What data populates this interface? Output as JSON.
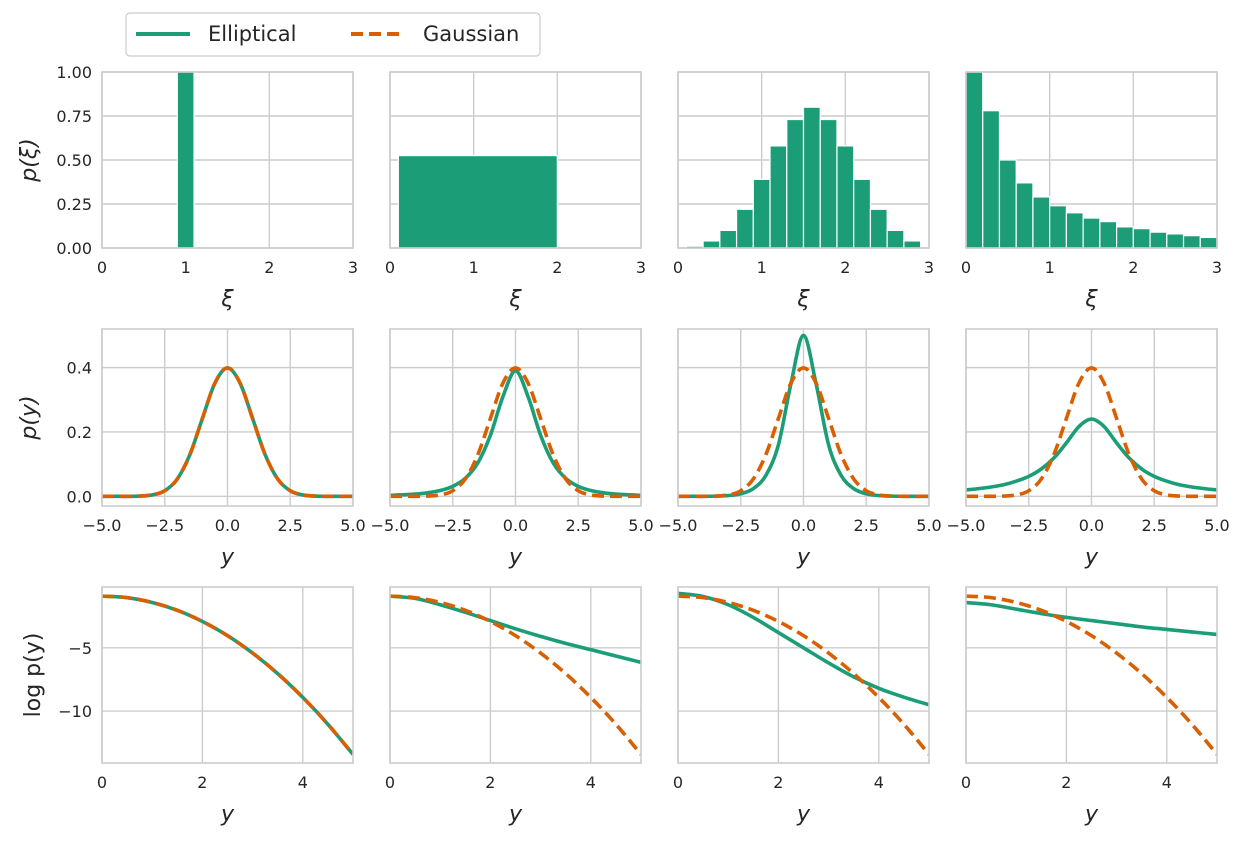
{
  "legend": {
    "position": "top-left",
    "entries": [
      {
        "label": "Elliptical",
        "color": "#1b9e77",
        "style": "solid"
      },
      {
        "label": "Gaussian",
        "color": "#d95f02",
        "style": "dashed"
      }
    ]
  },
  "colors": {
    "elliptical": "#1b9e77",
    "gaussian": "#d95f02",
    "grid": "#cccccc",
    "spine": "#cccccc"
  },
  "chart_data": [
    {
      "type": "bar",
      "row": "p(xi)",
      "column": 1,
      "xlabel": "ξ",
      "ylabel": "p(ξ)",
      "xlim": [
        0,
        3
      ],
      "ylim": [
        0,
        1
      ],
      "xticks": [
        "0",
        "1",
        "2",
        "3"
      ],
      "yticks": [
        "0.00",
        "0.25",
        "0.50",
        "0.75",
        "1.00"
      ],
      "grid": true,
      "bars": [
        {
          "x0": 0.9,
          "x1": 1.1,
          "value": 1.0
        }
      ]
    },
    {
      "type": "bar",
      "row": "p(xi)",
      "column": 2,
      "xlabel": "ξ",
      "ylabel": "",
      "xlim": [
        0,
        3
      ],
      "ylim": [
        0,
        1
      ],
      "xticks": [
        "0",
        "1",
        "2",
        "3"
      ],
      "yticks": [],
      "grid": true,
      "bars": [
        {
          "x0": 0.1,
          "x1": 2.0,
          "value": 0.525
        }
      ]
    },
    {
      "type": "bar",
      "row": "p(xi)",
      "column": 3,
      "xlabel": "ξ",
      "ylabel": "",
      "xlim": [
        0,
        3
      ],
      "ylim": [
        0,
        1
      ],
      "xticks": [
        "0",
        "1",
        "2",
        "3"
      ],
      "yticks": [],
      "grid": true,
      "bars": [
        {
          "x0": 0.1,
          "x1": 0.3,
          "value": 0.01
        },
        {
          "x0": 0.3,
          "x1": 0.5,
          "value": 0.04
        },
        {
          "x0": 0.5,
          "x1": 0.7,
          "value": 0.1
        },
        {
          "x0": 0.7,
          "x1": 0.9,
          "value": 0.22
        },
        {
          "x0": 0.9,
          "x1": 1.1,
          "value": 0.39
        },
        {
          "x0": 1.1,
          "x1": 1.3,
          "value": 0.58
        },
        {
          "x0": 1.3,
          "x1": 1.5,
          "value": 0.73
        },
        {
          "x0": 1.5,
          "x1": 1.7,
          "value": 0.8
        },
        {
          "x0": 1.7,
          "x1": 1.9,
          "value": 0.73
        },
        {
          "x0": 1.9,
          "x1": 2.1,
          "value": 0.58
        },
        {
          "x0": 2.1,
          "x1": 2.3,
          "value": 0.39
        },
        {
          "x0": 2.3,
          "x1": 2.5,
          "value": 0.22
        },
        {
          "x0": 2.5,
          "x1": 2.7,
          "value": 0.1
        },
        {
          "x0": 2.7,
          "x1": 2.9,
          "value": 0.04
        }
      ]
    },
    {
      "type": "bar",
      "row": "p(xi)",
      "column": 4,
      "xlabel": "ξ",
      "ylabel": "",
      "xlim": [
        0,
        3
      ],
      "ylim": [
        0,
        1
      ],
      "xticks": [
        "0",
        "1",
        "2",
        "3"
      ],
      "yticks": [],
      "grid": true,
      "bars": [
        {
          "x0": 0.0,
          "x1": 0.2,
          "value": 1.0
        },
        {
          "x0": 0.2,
          "x1": 0.4,
          "value": 0.78
        },
        {
          "x0": 0.4,
          "x1": 0.6,
          "value": 0.5
        },
        {
          "x0": 0.6,
          "x1": 0.8,
          "value": 0.37
        },
        {
          "x0": 0.8,
          "x1": 1.0,
          "value": 0.29
        },
        {
          "x0": 1.0,
          "x1": 1.2,
          "value": 0.24
        },
        {
          "x0": 1.2,
          "x1": 1.4,
          "value": 0.2
        },
        {
          "x0": 1.4,
          "x1": 1.6,
          "value": 0.17
        },
        {
          "x0": 1.6,
          "x1": 1.8,
          "value": 0.15
        },
        {
          "x0": 1.8,
          "x1": 2.0,
          "value": 0.12
        },
        {
          "x0": 2.0,
          "x1": 2.2,
          "value": 0.11
        },
        {
          "x0": 2.2,
          "x1": 2.4,
          "value": 0.09
        },
        {
          "x0": 2.4,
          "x1": 2.6,
          "value": 0.08
        },
        {
          "x0": 2.6,
          "x1": 2.8,
          "value": 0.07
        },
        {
          "x0": 2.8,
          "x1": 3.0,
          "value": 0.06
        }
      ]
    },
    {
      "type": "line",
      "row": "p(y)",
      "column": 1,
      "xlabel": "y",
      "ylabel": "p(y)",
      "xlim": [
        -5,
        5
      ],
      "ylim": [
        -0.03,
        0.52
      ],
      "xticks": [
        "−5.0",
        "−2.5",
        "0.0",
        "2.5",
        "5.0"
      ],
      "yticks": [
        "0.0",
        "0.2",
        "0.4"
      ],
      "grid": true,
      "series": [
        {
          "name": "Elliptical",
          "x": [
            -5,
            -4.5,
            -4,
            -3.5,
            -3,
            -2.5,
            -2,
            -1.5,
            -1,
            -0.5,
            0,
            0.5,
            1,
            1.5,
            2,
            2.5,
            3,
            3.5,
            4,
            4.5,
            5
          ],
          "values": [
            0,
            0,
            0.0001,
            0.0009,
            0.0044,
            0.0175,
            0.054,
            0.1295,
            0.242,
            0.3521,
            0.3989,
            0.3521,
            0.242,
            0.1295,
            0.054,
            0.0175,
            0.0044,
            0.0009,
            0.0001,
            0,
            0
          ]
        },
        {
          "name": "Gaussian",
          "x": [
            -5,
            -4.5,
            -4,
            -3.5,
            -3,
            -2.5,
            -2,
            -1.5,
            -1,
            -0.5,
            0,
            0.5,
            1,
            1.5,
            2,
            2.5,
            3,
            3.5,
            4,
            4.5,
            5
          ],
          "values": [
            0,
            0,
            0.0001,
            0.0009,
            0.0044,
            0.0175,
            0.054,
            0.1295,
            0.242,
            0.3521,
            0.3989,
            0.3521,
            0.242,
            0.1295,
            0.054,
            0.0175,
            0.0044,
            0.0009,
            0.0001,
            0,
            0
          ]
        }
      ]
    },
    {
      "type": "line",
      "row": "p(y)",
      "column": 2,
      "xlabel": "y",
      "ylabel": "",
      "xlim": [
        -5,
        5
      ],
      "ylim": [
        -0.03,
        0.52
      ],
      "xticks": [
        "−5.0",
        "−2.5",
        "0.0",
        "2.5",
        "5.0"
      ],
      "yticks": [],
      "grid": true,
      "series": [
        {
          "name": "Elliptical",
          "x": [
            -5,
            -4.5,
            -4,
            -3.5,
            -3,
            -2.5,
            -2,
            -1.5,
            -1,
            -0.5,
            0,
            0.5,
            1,
            1.5,
            2,
            2.5,
            3,
            3.5,
            4,
            4.5,
            5
          ],
          "values": [
            0.003,
            0.005,
            0.007,
            0.011,
            0.018,
            0.031,
            0.056,
            0.104,
            0.19,
            0.31,
            0.39,
            0.31,
            0.19,
            0.104,
            0.056,
            0.031,
            0.018,
            0.011,
            0.007,
            0.005,
            0.003
          ]
        },
        {
          "name": "Gaussian",
          "x": [
            -5,
            -4.5,
            -4,
            -3.5,
            -3,
            -2.5,
            -2,
            -1.5,
            -1,
            -0.5,
            0,
            0.5,
            1,
            1.5,
            2,
            2.5,
            3,
            3.5,
            4,
            4.5,
            5
          ],
          "values": [
            0,
            0,
            0.0001,
            0.0009,
            0.0044,
            0.0175,
            0.054,
            0.1295,
            0.242,
            0.3521,
            0.3989,
            0.3521,
            0.242,
            0.1295,
            0.054,
            0.0175,
            0.0044,
            0.0009,
            0.0001,
            0,
            0
          ]
        }
      ]
    },
    {
      "type": "line",
      "row": "p(y)",
      "column": 3,
      "xlabel": "y",
      "ylabel": "",
      "xlim": [
        -5,
        5
      ],
      "ylim": [
        -0.03,
        0.52
      ],
      "xticks": [
        "−5.0",
        "−2.5",
        "0.0",
        "2.5",
        "5.0"
      ],
      "yticks": [],
      "grid": true,
      "series": [
        {
          "name": "Elliptical",
          "x": [
            -5,
            -4.5,
            -4,
            -3.5,
            -3,
            -2.5,
            -2,
            -1.5,
            -1,
            -0.5,
            0,
            0.5,
            1,
            1.5,
            2,
            2.5,
            3,
            3.5,
            4,
            4.5,
            5
          ],
          "values": [
            0,
            0,
            0.0002,
            0.0007,
            0.0025,
            0.008,
            0.024,
            0.065,
            0.16,
            0.35,
            0.5,
            0.35,
            0.16,
            0.065,
            0.024,
            0.008,
            0.0025,
            0.0007,
            0.0002,
            0,
            0
          ]
        },
        {
          "name": "Gaussian",
          "x": [
            -5,
            -4.5,
            -4,
            -3.5,
            -3,
            -2.5,
            -2,
            -1.5,
            -1,
            -0.5,
            0,
            0.5,
            1,
            1.5,
            2,
            2.5,
            3,
            3.5,
            4,
            4.5,
            5
          ],
          "values": [
            0,
            0,
            0.0001,
            0.0009,
            0.0044,
            0.0175,
            0.054,
            0.1295,
            0.242,
            0.3521,
            0.3989,
            0.3521,
            0.242,
            0.1295,
            0.054,
            0.0175,
            0.0044,
            0.0009,
            0.0001,
            0,
            0
          ]
        }
      ]
    },
    {
      "type": "line",
      "row": "p(y)",
      "column": 4,
      "xlabel": "y",
      "ylabel": "",
      "xlim": [
        -5,
        5
      ],
      "ylim": [
        -0.03,
        0.52
      ],
      "xticks": [
        "−5.0",
        "−2.5",
        "0.0",
        "2.5",
        "5.0"
      ],
      "yticks": [],
      "grid": true,
      "series": [
        {
          "name": "Elliptical",
          "x": [
            -5,
            -4.5,
            -4,
            -3.5,
            -3,
            -2.5,
            -2,
            -1.5,
            -1,
            -0.5,
            0,
            0.5,
            1,
            1.5,
            2,
            2.5,
            3,
            3.5,
            4,
            4.5,
            5
          ],
          "values": [
            0.02,
            0.024,
            0.029,
            0.036,
            0.047,
            0.062,
            0.085,
            0.119,
            0.166,
            0.217,
            0.24,
            0.217,
            0.166,
            0.119,
            0.085,
            0.062,
            0.047,
            0.036,
            0.029,
            0.024,
            0.02
          ]
        },
        {
          "name": "Gaussian",
          "x": [
            -5,
            -4.5,
            -4,
            -3.5,
            -3,
            -2.5,
            -2,
            -1.5,
            -1,
            -0.5,
            0,
            0.5,
            1,
            1.5,
            2,
            2.5,
            3,
            3.5,
            4,
            4.5,
            5
          ],
          "values": [
            0,
            0,
            0.0001,
            0.0009,
            0.0044,
            0.0175,
            0.054,
            0.1295,
            0.242,
            0.3521,
            0.3989,
            0.3521,
            0.242,
            0.1295,
            0.054,
            0.0175,
            0.0044,
            0.0009,
            0.0001,
            0,
            0
          ]
        }
      ]
    },
    {
      "type": "line",
      "row": "log p(y)",
      "column": 1,
      "xlabel": "y",
      "ylabel": "log  p(y)",
      "xlim": [
        0,
        5
      ],
      "ylim": [
        -14.1,
        -0.2
      ],
      "xticks": [
        "0",
        "2",
        "4"
      ],
      "yticks": [
        "−5",
        "−10"
      ],
      "grid": true,
      "series": [
        {
          "name": "Elliptical",
          "x": [
            0,
            0.5,
            1,
            1.5,
            2,
            2.5,
            3,
            3.5,
            4,
            4.5,
            5
          ],
          "values": [
            -0.92,
            -1.04,
            -1.42,
            -2.04,
            -2.92,
            -4.04,
            -5.42,
            -7.04,
            -8.92,
            -11.04,
            -13.42
          ]
        },
        {
          "name": "Gaussian",
          "x": [
            0,
            0.5,
            1,
            1.5,
            2,
            2.5,
            3,
            3.5,
            4,
            4.5,
            5
          ],
          "values": [
            -0.92,
            -1.04,
            -1.42,
            -2.04,
            -2.92,
            -4.04,
            -5.42,
            -7.04,
            -8.92,
            -11.04,
            -13.42
          ]
        }
      ]
    },
    {
      "type": "line",
      "row": "log p(y)",
      "column": 2,
      "xlabel": "y",
      "ylabel": "",
      "xlim": [
        0,
        5
      ],
      "ylim": [
        -14.1,
        -0.2
      ],
      "xticks": [
        "0",
        "2",
        "4"
      ],
      "yticks": [],
      "grid": true,
      "series": [
        {
          "name": "Elliptical",
          "x": [
            0,
            0.5,
            1,
            1.5,
            2,
            2.5,
            3,
            3.5,
            4,
            4.5,
            5
          ],
          "values": [
            -0.92,
            -1.1,
            -1.6,
            -2.2,
            -2.85,
            -3.5,
            -4.1,
            -4.65,
            -5.15,
            -5.65,
            -6.15
          ]
        },
        {
          "name": "Gaussian",
          "x": [
            0,
            0.5,
            1,
            1.5,
            2,
            2.5,
            3,
            3.5,
            4,
            4.5,
            5
          ],
          "values": [
            -0.92,
            -1.04,
            -1.42,
            -2.04,
            -2.92,
            -4.04,
            -5.42,
            -7.04,
            -8.92,
            -11.04,
            -13.42
          ]
        }
      ]
    },
    {
      "type": "line",
      "row": "log p(y)",
      "column": 3,
      "xlabel": "y",
      "ylabel": "",
      "xlim": [
        0,
        5
      ],
      "ylim": [
        -14.1,
        -0.2
      ],
      "xticks": [
        "0",
        "2",
        "4"
      ],
      "yticks": [],
      "grid": true,
      "series": [
        {
          "name": "Elliptical",
          "x": [
            0,
            0.5,
            1,
            1.5,
            2,
            2.5,
            3,
            3.5,
            4,
            4.5,
            5
          ],
          "values": [
            -0.7,
            -0.95,
            -1.6,
            -2.6,
            -3.8,
            -5.0,
            -6.2,
            -7.3,
            -8.2,
            -8.9,
            -9.5
          ]
        },
        {
          "name": "Gaussian",
          "x": [
            0,
            0.5,
            1,
            1.5,
            2,
            2.5,
            3,
            3.5,
            4,
            4.5,
            5
          ],
          "values": [
            -0.92,
            -1.04,
            -1.42,
            -2.04,
            -2.92,
            -4.04,
            -5.42,
            -7.04,
            -8.92,
            -11.04,
            -13.42
          ]
        }
      ]
    },
    {
      "type": "line",
      "row": "log p(y)",
      "column": 4,
      "xlabel": "y",
      "ylabel": "",
      "xlim": [
        0,
        5
      ],
      "ylim": [
        -14.1,
        -0.2
      ],
      "xticks": [
        "0",
        "2",
        "4"
      ],
      "yticks": [],
      "grid": true,
      "series": [
        {
          "name": "Elliptical",
          "x": [
            0,
            0.5,
            1,
            1.5,
            2,
            2.5,
            3,
            3.5,
            4,
            4.5,
            5
          ],
          "values": [
            -1.43,
            -1.6,
            -1.95,
            -2.3,
            -2.6,
            -2.85,
            -3.1,
            -3.35,
            -3.55,
            -3.75,
            -3.95
          ]
        },
        {
          "name": "Gaussian",
          "x": [
            0,
            0.5,
            1,
            1.5,
            2,
            2.5,
            3,
            3.5,
            4,
            4.5,
            5
          ],
          "values": [
            -0.92,
            -1.04,
            -1.42,
            -2.04,
            -2.92,
            -4.04,
            -5.42,
            -7.04,
            -8.92,
            -11.04,
            -13.42
          ]
        }
      ]
    }
  ]
}
